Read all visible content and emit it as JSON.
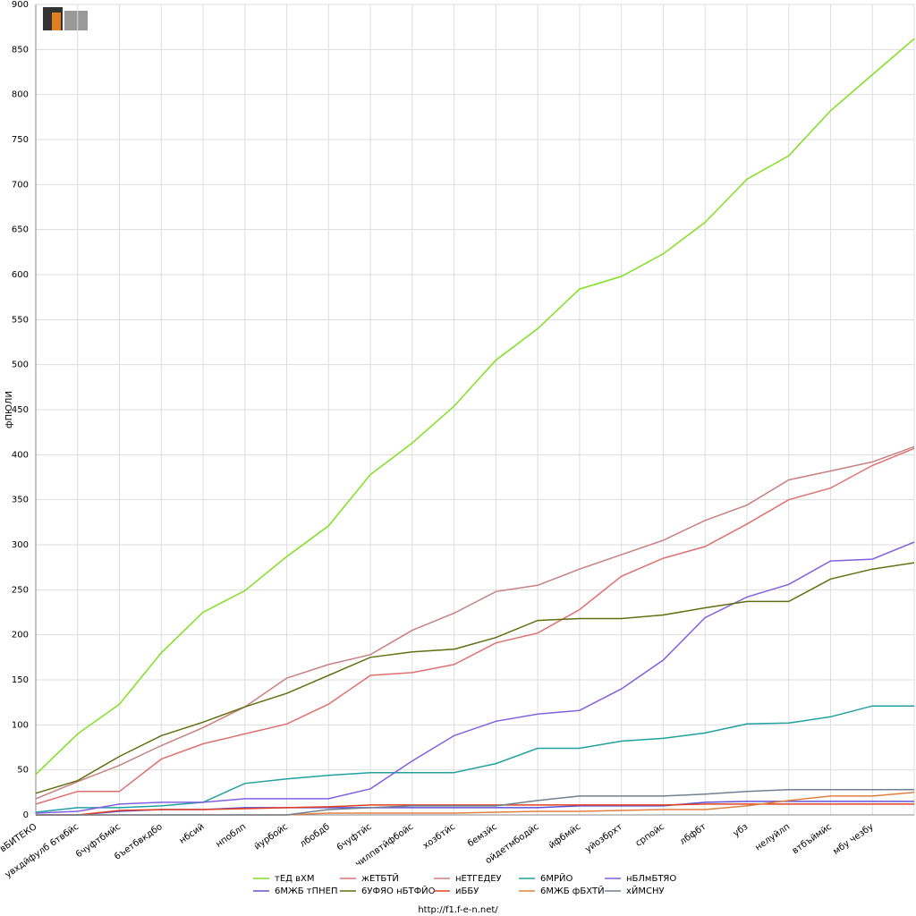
{
  "chart_data": {
    "type": "line",
    "y_label": "фПЮЛИ",
    "footer": "http://f1.f-e-n.net/",
    "categories": [
      "вБИТЕКО",
      "увхдйфулб 6твбйс",
      "6чуфтбмйс",
      "6ъетбвкдбо",
      "нбсий",
      "нпоблп",
      "йурбойс",
      "лбобдб",
      "6чуфтйс",
      "чилпвтйфбойс",
      "хозбтйс",
      "бемзйс",
      "ойдетмбодйс",
      "йфбмйс",
      "уйозбрхт",
      "српойс",
      "лбфбт",
      "убз",
      "нелуйлп",
      "втбъймйс",
      "мбу чезбу",
      null
    ],
    "ylim": [
      0,
      900
    ],
    "yticks": [
      0,
      50,
      100,
      150,
      200,
      250,
      300,
      350,
      400,
      450,
      500,
      550,
      600,
      650,
      700,
      750,
      800,
      850,
      900
    ],
    "grid": true,
    "legend": "bottom",
    "series": [
      {
        "name": "тЕД вХМ",
        "color": "#80e020",
        "values": [
          45,
          90,
          123,
          180,
          225,
          249,
          287,
          321,
          378,
          413,
          454,
          505,
          540,
          584,
          598,
          623,
          658,
          706,
          732,
          782,
          822,
          862
        ]
      },
      {
        "name": "жЕТБТЙ",
        "color": "#e07070",
        "values": [
          12,
          26,
          26,
          62,
          79,
          90,
          101,
          123,
          155,
          158,
          167,
          191,
          202,
          228,
          265,
          285,
          298,
          323,
          350,
          363,
          388,
          407
        ]
      },
      {
        "name": "нЕТГЕДЕУ",
        "color": "#c88080",
        "values": [
          18,
          37,
          55,
          77,
          97,
          120,
          152,
          167,
          178,
          205,
          224,
          248,
          255,
          273,
          289,
          305,
          327,
          344,
          372,
          382,
          392,
          409
        ]
      },
      {
        "name": "6МРЙО",
        "color": "#20a0a0",
        "values": [
          3,
          8,
          8,
          10,
          14,
          35,
          40,
          44,
          47,
          47,
          47,
          57,
          74,
          74,
          82,
          85,
          91,
          101,
          102,
          109,
          121,
          121
        ]
      },
      {
        "name": "нБЛмБТЯО",
        "color": "#8060e0",
        "values": [
          2,
          4,
          12,
          14,
          14,
          18,
          18,
          18,
          29,
          60,
          88,
          104,
          112,
          116,
          140,
          172,
          219,
          242,
          256,
          282,
          284,
          303
        ]
      },
      {
        "name": "6МЖБ тПНЕП",
        "color": "#6050d8",
        "values": [
          0,
          0,
          4,
          6,
          6,
          8,
          8,
          8,
          8,
          8,
          8,
          8,
          8,
          10,
          10,
          10,
          14,
          15,
          15,
          15,
          15,
          15
        ]
      },
      {
        "name": "6УФЯО нБТФЙО",
        "color": "#607010",
        "values": [
          24,
          38,
          65,
          88,
          103,
          120,
          135,
          155,
          175,
          181,
          184,
          197,
          216,
          218,
          218,
          222,
          230,
          237,
          237,
          262,
          273,
          280
        ]
      },
      {
        "name": "иББУ",
        "color": "#e04020",
        "values": [
          0,
          0,
          5,
          6,
          6,
          7,
          8,
          9,
          11,
          11,
          11,
          11,
          11,
          11,
          11,
          11,
          12,
          12,
          12,
          12,
          12,
          12
        ]
      },
      {
        "name": "6МЖБ фБХТЙ",
        "color": "#e08040",
        "values": [
          0,
          0,
          0,
          0,
          0,
          0,
          0,
          2,
          2,
          2,
          2,
          3,
          4,
          4,
          5,
          6,
          6,
          10,
          16,
          21,
          21,
          25
        ]
      },
      {
        "name": "хЙМСНУ",
        "color": "#708090",
        "values": [
          0,
          0,
          0,
          0,
          0,
          0,
          0,
          6,
          8,
          10,
          10,
          10,
          16,
          21,
          21,
          21,
          23,
          26,
          28,
          28,
          28,
          28
        ]
      }
    ]
  }
}
